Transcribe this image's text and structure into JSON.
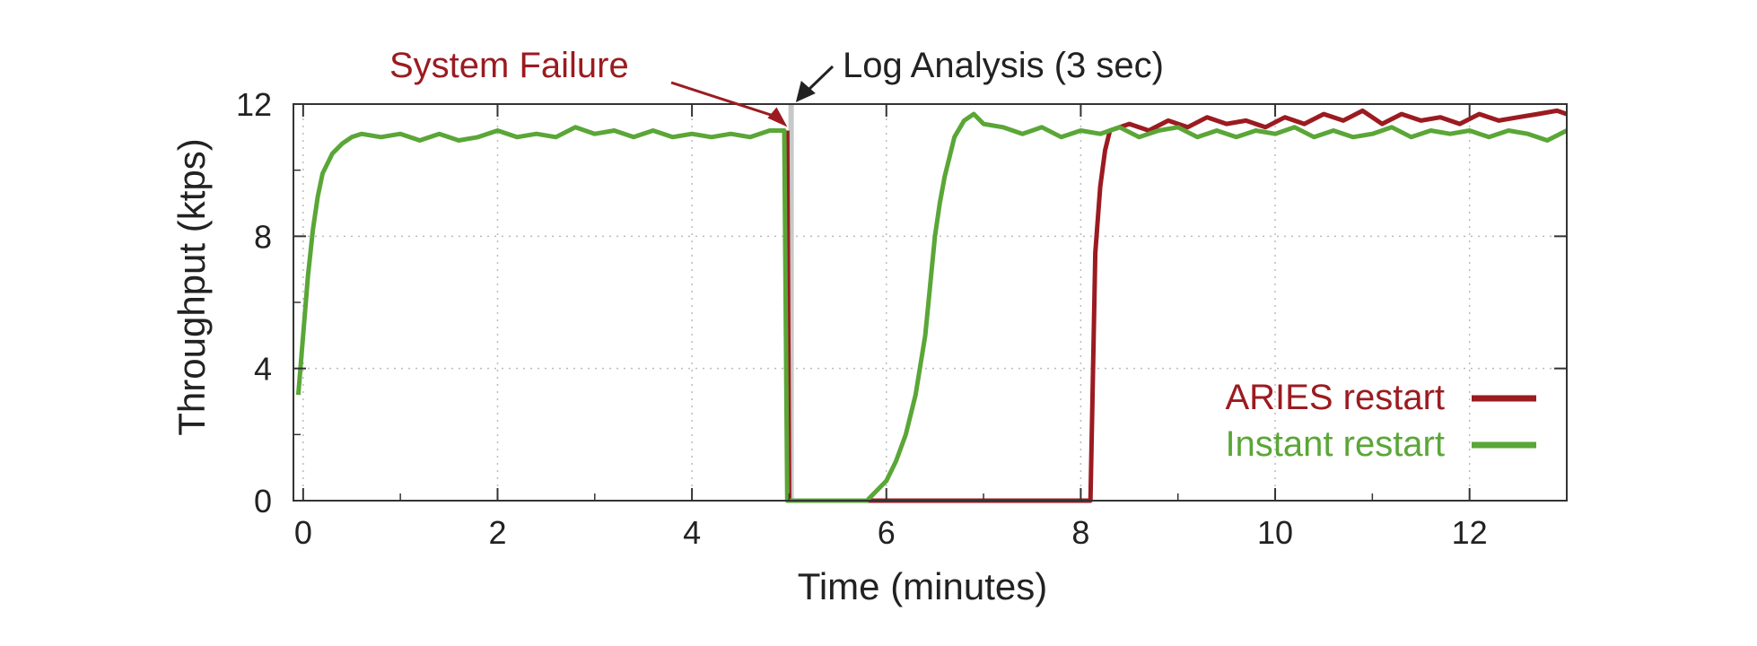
{
  "chart_data": {
    "type": "line",
    "xlabel": "Time (minutes)",
    "ylabel": "Throughput (ktps)",
    "xlim": [
      -0.1,
      13
    ],
    "ylim": [
      0,
      12
    ],
    "x_ticks": [
      0,
      2,
      4,
      6,
      8,
      10,
      12
    ],
    "y_ticks": [
      0,
      4,
      8,
      12
    ],
    "grid": true,
    "legend_position": "bottom-right",
    "annotations": [
      {
        "text": "System Failure",
        "x": 5.0,
        "y": 11.2,
        "color": "#9b1b20"
      },
      {
        "text": "Log Analysis (3 sec)",
        "x": 5.05,
        "y": 12.0,
        "color": "#222222"
      }
    ],
    "series": [
      {
        "name": "ARIES restart",
        "color": "#9b1b20",
        "points": [
          [
            4.98,
            11.2
          ],
          [
            5.0,
            0
          ],
          [
            8.1,
            0
          ],
          [
            8.12,
            3.0
          ],
          [
            8.15,
            7.5
          ],
          [
            8.2,
            9.5
          ],
          [
            8.25,
            10.6
          ],
          [
            8.3,
            11.2
          ],
          [
            8.5,
            11.4
          ],
          [
            8.7,
            11.2
          ],
          [
            8.9,
            11.5
          ],
          [
            9.1,
            11.3
          ],
          [
            9.3,
            11.6
          ],
          [
            9.5,
            11.4
          ],
          [
            9.7,
            11.5
          ],
          [
            9.9,
            11.3
          ],
          [
            10.1,
            11.6
          ],
          [
            10.3,
            11.4
          ],
          [
            10.5,
            11.7
          ],
          [
            10.7,
            11.5
          ],
          [
            10.9,
            11.8
          ],
          [
            11.1,
            11.4
          ],
          [
            11.3,
            11.7
          ],
          [
            11.5,
            11.5
          ],
          [
            11.7,
            11.6
          ],
          [
            11.9,
            11.4
          ],
          [
            12.1,
            11.7
          ],
          [
            12.3,
            11.5
          ],
          [
            12.5,
            11.6
          ],
          [
            12.7,
            11.7
          ],
          [
            12.9,
            11.8
          ],
          [
            13.0,
            11.7
          ]
        ]
      },
      {
        "name": "Instant restart",
        "color": "#5aa637",
        "points": [
          [
            -0.05,
            3.2
          ],
          [
            0.0,
            5.0
          ],
          [
            0.05,
            6.8
          ],
          [
            0.1,
            8.2
          ],
          [
            0.15,
            9.2
          ],
          [
            0.2,
            9.9
          ],
          [
            0.3,
            10.5
          ],
          [
            0.4,
            10.8
          ],
          [
            0.5,
            11.0
          ],
          [
            0.6,
            11.1
          ],
          [
            0.8,
            11.0
          ],
          [
            1.0,
            11.1
          ],
          [
            1.2,
            10.9
          ],
          [
            1.4,
            11.1
          ],
          [
            1.6,
            10.9
          ],
          [
            1.8,
            11.0
          ],
          [
            2.0,
            11.2
          ],
          [
            2.2,
            11.0
          ],
          [
            2.4,
            11.1
          ],
          [
            2.6,
            11.0
          ],
          [
            2.8,
            11.3
          ],
          [
            3.0,
            11.1
          ],
          [
            3.2,
            11.2
          ],
          [
            3.4,
            11.0
          ],
          [
            3.6,
            11.2
          ],
          [
            3.8,
            11.0
          ],
          [
            4.0,
            11.1
          ],
          [
            4.2,
            11.0
          ],
          [
            4.4,
            11.1
          ],
          [
            4.6,
            11.0
          ],
          [
            4.8,
            11.2
          ],
          [
            4.95,
            11.2
          ],
          [
            4.98,
            0
          ],
          [
            5.8,
            0
          ],
          [
            5.9,
            0.3
          ],
          [
            6.0,
            0.6
          ],
          [
            6.1,
            1.2
          ],
          [
            6.2,
            2.0
          ],
          [
            6.3,
            3.2
          ],
          [
            6.4,
            5.0
          ],
          [
            6.45,
            6.5
          ],
          [
            6.5,
            8.0
          ],
          [
            6.55,
            9.0
          ],
          [
            6.6,
            9.8
          ],
          [
            6.65,
            10.4
          ],
          [
            6.7,
            11.0
          ],
          [
            6.8,
            11.5
          ],
          [
            6.9,
            11.7
          ],
          [
            7.0,
            11.4
          ],
          [
            7.2,
            11.3
          ],
          [
            7.4,
            11.1
          ],
          [
            7.6,
            11.3
          ],
          [
            7.8,
            11.0
          ],
          [
            8.0,
            11.2
          ],
          [
            8.2,
            11.1
          ],
          [
            8.4,
            11.3
          ],
          [
            8.6,
            11.0
          ],
          [
            8.8,
            11.2
          ],
          [
            9.0,
            11.3
          ],
          [
            9.2,
            11.0
          ],
          [
            9.4,
            11.2
          ],
          [
            9.6,
            11.0
          ],
          [
            9.8,
            11.2
          ],
          [
            10.0,
            11.1
          ],
          [
            10.2,
            11.3
          ],
          [
            10.4,
            11.0
          ],
          [
            10.6,
            11.2
          ],
          [
            10.8,
            11.0
          ],
          [
            11.0,
            11.1
          ],
          [
            11.2,
            11.3
          ],
          [
            11.4,
            11.0
          ],
          [
            11.6,
            11.2
          ],
          [
            11.8,
            11.1
          ],
          [
            12.0,
            11.2
          ],
          [
            12.2,
            11.0
          ],
          [
            12.4,
            11.2
          ],
          [
            12.6,
            11.1
          ],
          [
            12.8,
            10.9
          ],
          [
            13.0,
            11.2
          ]
        ]
      }
    ],
    "failure_marker": {
      "x": 5.02,
      "color": "#c8c8c8"
    }
  }
}
